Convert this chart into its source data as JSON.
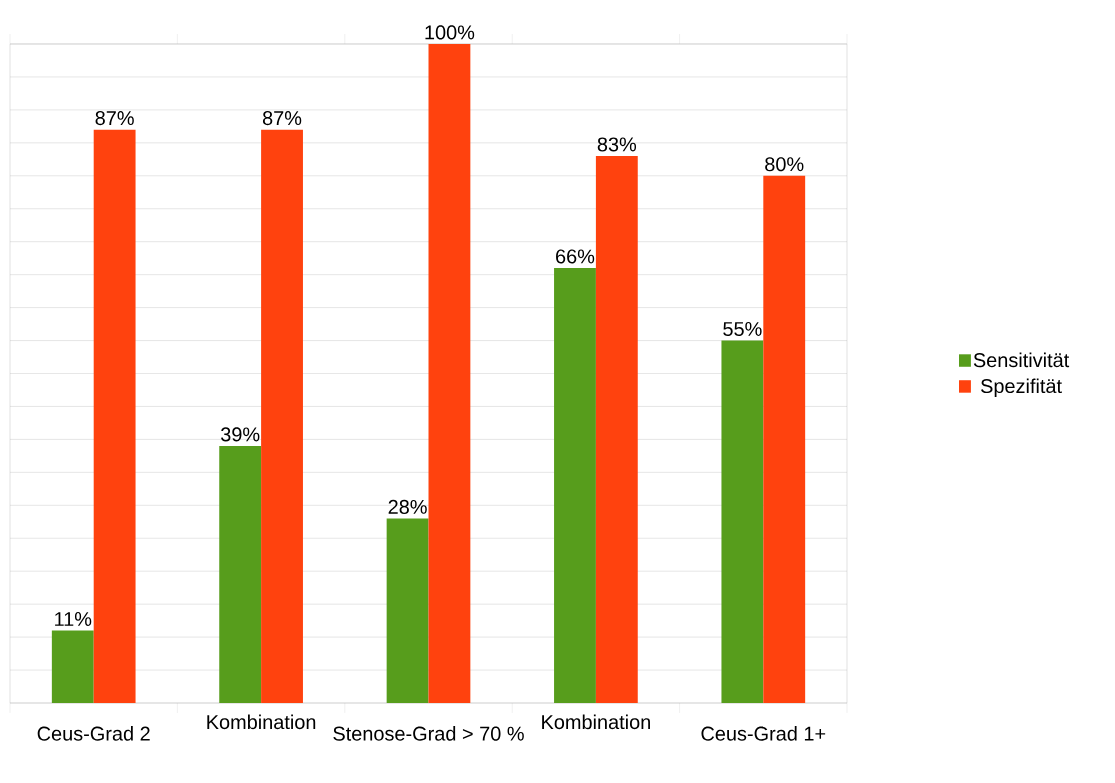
{
  "chart_data": {
    "type": "bar",
    "categories": [
      "Ceus-Grad 2",
      "Kombination",
      "Stenose-Grad > 70 %",
      "Kombination",
      "Ceus-Grad 1+"
    ],
    "series": [
      {
        "name": "Sensitivität",
        "color": "#579d1c",
        "values": [
          11,
          39,
          28,
          66,
          55
        ],
        "value_labels": [
          "11%",
          "39%",
          "28%",
          "66%",
          "55%"
        ]
      },
      {
        "name": "Spezifität",
        "color": "#ff420e",
        "values": [
          87,
          87,
          100,
          83,
          80
        ],
        "value_labels": [
          "87%",
          "87%",
          "100%",
          "83%",
          "80%"
        ]
      }
    ],
    "ylim": [
      0,
      100
    ],
    "yticks": [
      {
        "value": 0,
        "label": null
      },
      {
        "value": 5,
        "label": null
      },
      {
        "value": 10,
        "label": null
      },
      {
        "value": 15,
        "label": null
      },
      {
        "value": 20,
        "label": null
      },
      {
        "value": 25,
        "label": null
      },
      {
        "value": 30,
        "label": null
      },
      {
        "value": 35,
        "label": null
      },
      {
        "value": 40,
        "label": null
      },
      {
        "value": 45,
        "label": null
      },
      {
        "value": 50,
        "label": null
      },
      {
        "value": 55,
        "label": null
      },
      {
        "value": 60,
        "label": null
      },
      {
        "value": 65,
        "label": null
      },
      {
        "value": 70,
        "label": null
      },
      {
        "value": 75,
        "label": null
      },
      {
        "value": 80,
        "label": null
      },
      {
        "value": 85,
        "label": null
      },
      {
        "value": 90,
        "label": null
      },
      {
        "value": 95,
        "label": null
      },
      {
        "value": 100,
        "label": null
      }
    ],
    "grid": "y",
    "legend": "right",
    "tick_labels": "x"
  }
}
